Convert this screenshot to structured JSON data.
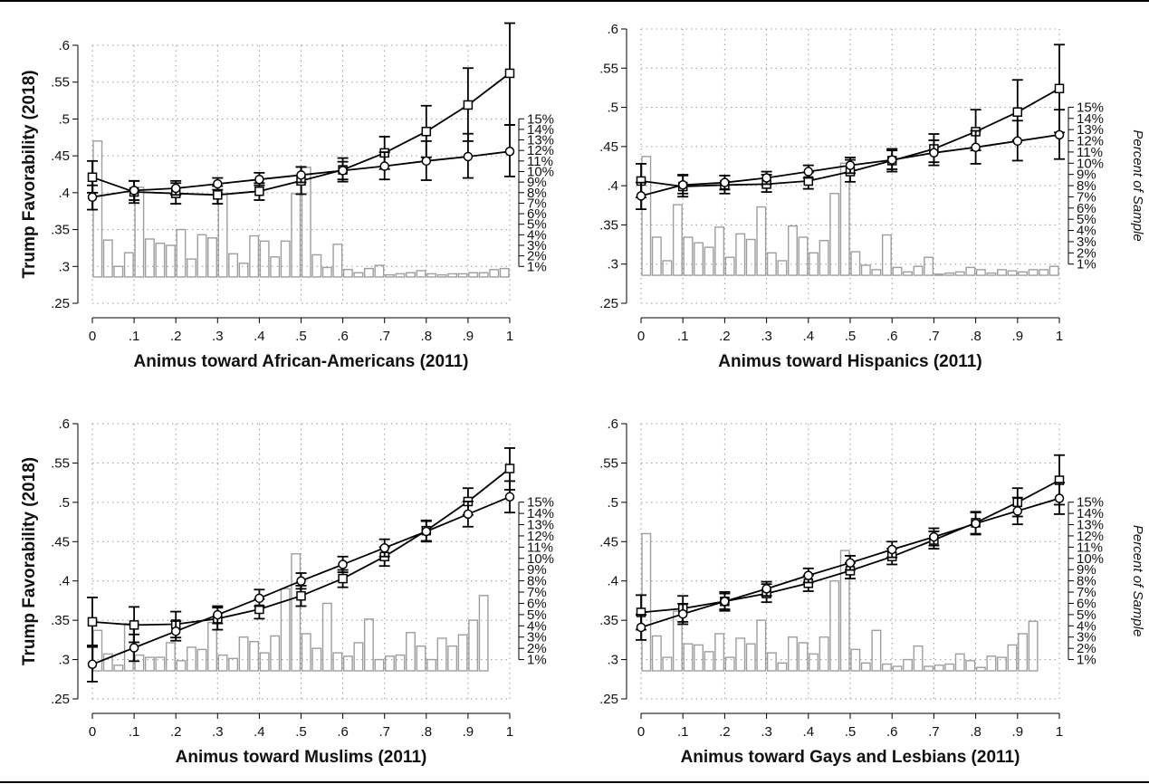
{
  "chart_data": [
    {
      "type": "bar",
      "xlabel": "Animus toward African-Americans (2011)",
      "ylabel": "Trump Favorability (2018)",
      "y2label": "",
      "xlim": [
        0,
        1
      ],
      "ylim": [
        0.25,
        0.6
      ],
      "y2lim": [
        0,
        15
      ],
      "x_ticks": [
        "0",
        ".1",
        ".2",
        ".3",
        ".4",
        ".5",
        ".6",
        ".7",
        ".8",
        ".9",
        "1"
      ],
      "y_ticks": [
        ".25",
        ".3",
        ".35",
        ".4",
        ".45",
        ".5",
        ".55",
        ".6"
      ],
      "y2_ticks": [
        "1%",
        "2%",
        "3%",
        "4%",
        "5%",
        "6%",
        "7%",
        "8%",
        "9%",
        "10%",
        "11%",
        "12%",
        "13%",
        "14%",
        "15%"
      ],
      "histogram": {
        "bin_centers": [
          0.0125,
          0.0375,
          0.0625,
          0.0875,
          0.1125,
          0.1375,
          0.1625,
          0.1875,
          0.2125,
          0.2375,
          0.2625,
          0.2875,
          0.3125,
          0.3375,
          0.3625,
          0.3875,
          0.4125,
          0.4375,
          0.4625,
          0.4875,
          0.5125,
          0.5375,
          0.5625,
          0.5875,
          0.6125,
          0.6375,
          0.6625,
          0.6875,
          0.7125,
          0.7375,
          0.7625,
          0.7875,
          0.8125,
          0.8375,
          0.8625,
          0.8875,
          0.9125,
          0.9375,
          0.9625,
          0.9875
        ],
        "percent": [
          12.9,
          3.5,
          1.0,
          2.3,
          8.5,
          3.6,
          3.2,
          3.0,
          4.5,
          1.7,
          4.0,
          3.7,
          7.9,
          2.2,
          1.3,
          3.9,
          3.4,
          1.9,
          3.4,
          7.9,
          10.4,
          2.1,
          0.9,
          3.1,
          0.7,
          0.4,
          0.8,
          1.1,
          0.2,
          0.3,
          0.4,
          0.6,
          0.3,
          0.2,
          0.3,
          0.3,
          0.4,
          0.4,
          0.7,
          0.8
        ]
      },
      "series": [
        {
          "marker": "square",
          "x": [
            0,
            0.1,
            0.2,
            0.3,
            0.4,
            0.5,
            0.6,
            0.7,
            0.8,
            0.9,
            1
          ],
          "y": [
            0.421,
            0.401,
            0.399,
            0.397,
            0.402,
            0.416,
            0.431,
            0.454,
            0.483,
            0.519,
            0.562
          ],
          "ci_low": [
            0.4,
            0.386,
            0.385,
            0.385,
            0.39,
            0.398,
            0.415,
            0.432,
            0.448,
            0.47,
            0.492
          ],
          "ci_high": [
            0.443,
            0.416,
            0.413,
            0.409,
            0.413,
            0.435,
            0.447,
            0.476,
            0.518,
            0.569,
            0.63
          ]
        },
        {
          "marker": "circle",
          "x": [
            0,
            0.1,
            0.2,
            0.3,
            0.4,
            0.5,
            0.6,
            0.7,
            0.8,
            0.9,
            1
          ],
          "y": [
            0.394,
            0.403,
            0.406,
            0.412,
            0.418,
            0.424,
            0.43,
            0.436,
            0.443,
            0.449,
            0.456
          ],
          "ci_low": [
            0.377,
            0.39,
            0.397,
            0.404,
            0.41,
            0.414,
            0.418,
            0.418,
            0.417,
            0.42,
            0.422
          ],
          "ci_high": [
            0.41,
            0.416,
            0.416,
            0.42,
            0.427,
            0.435,
            0.442,
            0.455,
            0.47,
            0.48,
            0.492
          ]
        }
      ]
    },
    {
      "type": "bar",
      "xlabel": "Animus toward Hispanics (2011)",
      "ylabel": "",
      "y2label": "Percent of Sample",
      "xlim": [
        0,
        1
      ],
      "ylim": [
        0.25,
        0.6
      ],
      "y2lim": [
        0,
        15
      ],
      "x_ticks": [
        "0",
        ".1",
        ".2",
        ".3",
        ".4",
        ".5",
        ".6",
        ".7",
        ".8",
        ".9",
        "1"
      ],
      "y_ticks": [
        ".25",
        ".3",
        ".35",
        ".4",
        ".45",
        ".5",
        ".55",
        ".6"
      ],
      "y2_ticks": [
        "1%",
        "2%",
        "3%",
        "4%",
        "5%",
        "6%",
        "7%",
        "8%",
        "9%",
        "10%",
        "11%",
        "12%",
        "13%",
        "14%",
        "15%"
      ],
      "histogram": {
        "bin_centers": [
          0.0125,
          0.0375,
          0.0625,
          0.0875,
          0.1125,
          0.1375,
          0.1625,
          0.1875,
          0.2125,
          0.2375,
          0.2625,
          0.2875,
          0.3125,
          0.3375,
          0.3625,
          0.3875,
          0.4125,
          0.4375,
          0.4625,
          0.4875,
          0.5125,
          0.5375,
          0.5625,
          0.5875,
          0.6125,
          0.6375,
          0.6625,
          0.6875,
          0.7125,
          0.7375,
          0.7625,
          0.7875,
          0.8125,
          0.8375,
          0.8625,
          0.8875,
          0.9125,
          0.9375,
          0.9625,
          0.9875
        ],
        "percent": [
          10.6,
          3.4,
          1.3,
          6.3,
          3.4,
          2.9,
          2.5,
          4.3,
          1.6,
          3.7,
          3.2,
          6.1,
          2.0,
          1.3,
          4.4,
          3.4,
          2.0,
          3.1,
          7.3,
          10.0,
          2.1,
          0.9,
          0.5,
          3.6,
          0.7,
          0.3,
          0.8,
          1.6,
          0.1,
          0.2,
          0.3,
          0.7,
          0.5,
          0.2,
          0.5,
          0.4,
          0.3,
          0.5,
          0.5,
          0.8
        ]
      },
      "series": [
        {
          "marker": "square",
          "x": [
            0,
            0.1,
            0.2,
            0.3,
            0.4,
            0.5,
            0.6,
            0.7,
            0.8,
            0.9,
            1
          ],
          "y": [
            0.406,
            0.399,
            0.401,
            0.402,
            0.406,
            0.418,
            0.432,
            0.447,
            0.469,
            0.494,
            0.524
          ],
          "ci_low": [
            0.385,
            0.386,
            0.39,
            0.392,
            0.396,
            0.405,
            0.418,
            0.43,
            0.445,
            0.458,
            0.468
          ],
          "ci_high": [
            0.428,
            0.414,
            0.413,
            0.414,
            0.417,
            0.433,
            0.447,
            0.466,
            0.497,
            0.535,
            0.58
          ]
        },
        {
          "marker": "circle",
          "x": [
            0,
            0.1,
            0.2,
            0.3,
            0.4,
            0.5,
            0.6,
            0.7,
            0.8,
            0.9,
            1
          ],
          "y": [
            0.387,
            0.401,
            0.404,
            0.41,
            0.418,
            0.426,
            0.433,
            0.442,
            0.449,
            0.457,
            0.465
          ],
          "ci_low": [
            0.37,
            0.39,
            0.395,
            0.402,
            0.41,
            0.416,
            0.421,
            0.426,
            0.428,
            0.432,
            0.434
          ],
          "ci_high": [
            0.404,
            0.413,
            0.413,
            0.418,
            0.426,
            0.436,
            0.445,
            0.458,
            0.47,
            0.483,
            0.497
          ]
        }
      ]
    },
    {
      "type": "bar",
      "xlabel": "Animus toward Muslims (2011)",
      "ylabel": "Trump Favorability (2018)",
      "y2label": "",
      "xlim": [
        0,
        1
      ],
      "ylim": [
        0.25,
        0.6
      ],
      "y2lim": [
        0,
        15
      ],
      "x_ticks": [
        "0",
        ".1",
        ".2",
        ".3",
        ".4",
        ".5",
        ".6",
        ".7",
        ".8",
        ".9",
        "1"
      ],
      "y_ticks": [
        ".25",
        ".3",
        ".35",
        ".4",
        ".45",
        ".5",
        ".55",
        ".6"
      ],
      "y2_ticks": [
        "1%",
        "2%",
        "3%",
        "4%",
        "5%",
        "6%",
        "7%",
        "8%",
        "9%",
        "10%",
        "11%",
        "12%",
        "13%",
        "14%",
        "15%"
      ],
      "histogram": {
        "bin_centers": [
          0.0125,
          0.0375,
          0.0625,
          0.0875,
          0.1125,
          0.1375,
          0.1625,
          0.1875,
          0.2125,
          0.2375,
          0.2625,
          0.2875,
          0.3125,
          0.3375,
          0.3625,
          0.3875,
          0.4125,
          0.4375,
          0.4625,
          0.4875,
          0.5125,
          0.5375,
          0.5625,
          0.5875,
          0.6125,
          0.6375,
          0.6625,
          0.6875,
          0.7125,
          0.7375,
          0.7625,
          0.7875,
          0.8125,
          0.8375,
          0.8625,
          0.8875,
          0.9125,
          0.9375,
          0.9625,
          0.9875
        ],
        "percent": [
          3.6,
          1.5,
          0.5,
          4.2,
          1.4,
          1.2,
          1.2,
          2.5,
          0.9,
          2.1,
          1.9,
          4.3,
          1.4,
          1.1,
          3.0,
          2.6,
          1.6,
          3.1,
          7.3,
          10.4,
          3.3,
          2.0,
          6.0,
          1.6,
          1.3,
          2.5,
          4.6,
          1.0,
          1.3,
          1.4,
          3.4,
          2.2,
          1.0,
          2.9,
          2.2,
          3.2,
          4.5,
          6.7,
          0,
          0
        ]
      },
      "series": [
        {
          "marker": "square",
          "x": [
            0,
            0.1,
            0.2,
            0.3,
            0.4,
            0.5,
            0.6,
            0.7,
            0.8,
            0.9,
            1
          ],
          "y": [
            0.348,
            0.344,
            0.345,
            0.352,
            0.364,
            0.381,
            0.403,
            0.431,
            0.464,
            0.501,
            0.543
          ],
          "ci_low": [
            0.318,
            0.322,
            0.328,
            0.338,
            0.352,
            0.368,
            0.392,
            0.419,
            0.451,
            0.484,
            0.516
          ],
          "ci_high": [
            0.379,
            0.367,
            0.361,
            0.366,
            0.377,
            0.394,
            0.414,
            0.443,
            0.477,
            0.518,
            0.569
          ]
        },
        {
          "marker": "circle",
          "x": [
            0,
            0.1,
            0.2,
            0.3,
            0.4,
            0.5,
            0.6,
            0.7,
            0.8,
            0.9,
            1
          ],
          "y": [
            0.294,
            0.315,
            0.336,
            0.357,
            0.378,
            0.4,
            0.421,
            0.442,
            0.463,
            0.485,
            0.507
          ],
          "ci_low": [
            0.272,
            0.298,
            0.324,
            0.346,
            0.368,
            0.39,
            0.411,
            0.431,
            0.45,
            0.469,
            0.487
          ],
          "ci_high": [
            0.316,
            0.332,
            0.349,
            0.368,
            0.389,
            0.41,
            0.431,
            0.453,
            0.476,
            0.501,
            0.527
          ]
        }
      ]
    },
    {
      "type": "bar",
      "xlabel": "Animus toward Gays and Lesbians (2011)",
      "ylabel": "",
      "y2label": "Percent of Sample",
      "xlim": [
        0,
        1
      ],
      "ylim": [
        0.25,
        0.6
      ],
      "y2lim": [
        0,
        15
      ],
      "x_ticks": [
        "0",
        ".1",
        ".2",
        ".3",
        ".4",
        ".5",
        ".6",
        ".7",
        ".8",
        ".9",
        "1"
      ],
      "y_ticks": [
        ".25",
        ".3",
        ".35",
        ".4",
        ".45",
        ".5",
        ".55",
        ".6"
      ],
      "y2_ticks": [
        "1%",
        "2%",
        "3%",
        "4%",
        "5%",
        "6%",
        "7%",
        "8%",
        "9%",
        "10%",
        "11%",
        "12%",
        "13%",
        "14%",
        "15%"
      ],
      "histogram": {
        "bin_centers": [
          0.0125,
          0.0375,
          0.0625,
          0.0875,
          0.1125,
          0.1375,
          0.1625,
          0.1875,
          0.2125,
          0.2375,
          0.2625,
          0.2875,
          0.3125,
          0.3375,
          0.3625,
          0.3875,
          0.4125,
          0.4375,
          0.4625,
          0.4875,
          0.5125,
          0.5375,
          0.5625,
          0.5875,
          0.6125,
          0.6375,
          0.6625,
          0.6875,
          0.7125,
          0.7375,
          0.7625,
          0.7875,
          0.8125,
          0.8375,
          0.8625,
          0.8875,
          0.9125,
          0.9375,
          0.9625,
          0.9875
        ],
        "percent": [
          12.2,
          3.1,
          1.2,
          5.3,
          2.4,
          2.3,
          1.7,
          3.3,
          1.2,
          2.9,
          2.4,
          4.5,
          1.6,
          0.7,
          3.0,
          2.5,
          1.5,
          3.0,
          8.0,
          10.7,
          1.9,
          0.7,
          3.6,
          0.6,
          0.4,
          1.0,
          2.2,
          0.4,
          0.5,
          0.6,
          1.5,
          0.9,
          0.3,
          1.3,
          1.2,
          2.3,
          3.3,
          4.4,
          0,
          0
        ]
      },
      "series": [
        {
          "marker": "square",
          "x": [
            0,
            0.1,
            0.2,
            0.3,
            0.4,
            0.5,
            0.6,
            0.7,
            0.8,
            0.9,
            1
          ],
          "y": [
            0.36,
            0.365,
            0.374,
            0.384,
            0.397,
            0.413,
            0.431,
            0.452,
            0.474,
            0.5,
            0.528
          ],
          "ci_low": [
            0.338,
            0.348,
            0.362,
            0.373,
            0.387,
            0.403,
            0.421,
            0.441,
            0.46,
            0.482,
            0.497
          ],
          "ci_high": [
            0.382,
            0.381,
            0.386,
            0.396,
            0.407,
            0.423,
            0.441,
            0.463,
            0.488,
            0.518,
            0.56
          ]
        },
        {
          "marker": "circle",
          "x": [
            0,
            0.1,
            0.2,
            0.3,
            0.4,
            0.5,
            0.6,
            0.7,
            0.8,
            0.9,
            1
          ],
          "y": [
            0.341,
            0.358,
            0.374,
            0.39,
            0.407,
            0.423,
            0.44,
            0.456,
            0.473,
            0.489,
            0.505
          ],
          "ci_low": [
            0.325,
            0.345,
            0.364,
            0.381,
            0.398,
            0.414,
            0.43,
            0.445,
            0.459,
            0.472,
            0.485
          ],
          "ci_high": [
            0.357,
            0.371,
            0.384,
            0.399,
            0.416,
            0.432,
            0.45,
            0.467,
            0.487,
            0.506,
            0.525
          ]
        }
      ]
    }
  ]
}
